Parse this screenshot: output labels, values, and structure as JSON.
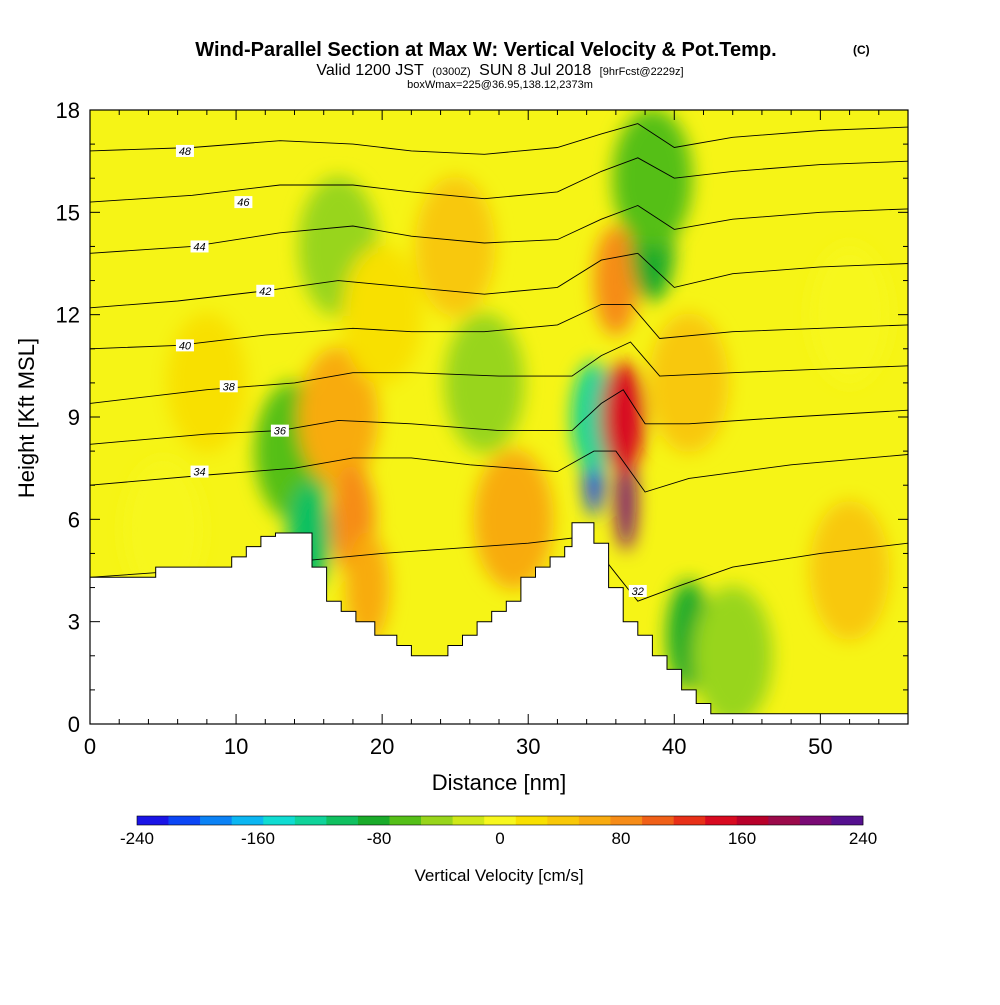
{
  "header": {
    "title": "Wind-Parallel Section at Max W: Vertical Velocity & Pot.Temp.",
    "title_mark": "(C)",
    "valid_prefix": "Valid 1200 JST",
    "valid_utc": "(0300Z)",
    "valid_date": "SUN 8 Jul 2018",
    "forecast": "[9hrFcst@2229z]",
    "boxinfo": "boxWmax=225@36.95,138.12,2373m"
  },
  "chart_data": {
    "type": "heatmap",
    "xlabel": "Distance [nm]",
    "ylabel": "Height [Kft MSL]",
    "xlim": [
      0,
      56
    ],
    "ylim": [
      0,
      18
    ],
    "xticks": [
      0,
      10,
      20,
      30,
      40,
      50
    ],
    "yticks": [
      0,
      3,
      6,
      9,
      12,
      15,
      18
    ],
    "terrain_kft": [
      [
        0,
        4.3
      ],
      [
        4.5,
        4.3
      ],
      [
        4.5,
        4.6
      ],
      [
        9.7,
        4.6
      ],
      [
        9.7,
        4.9
      ],
      [
        10.7,
        4.9
      ],
      [
        10.7,
        5.2
      ],
      [
        11.7,
        5.2
      ],
      [
        11.7,
        5.5
      ],
      [
        12.7,
        5.5
      ],
      [
        12.7,
        5.6
      ],
      [
        15.2,
        5.6
      ],
      [
        15.2,
        4.6
      ],
      [
        16.2,
        4.6
      ],
      [
        16.2,
        3.6
      ],
      [
        17.2,
        3.6
      ],
      [
        17.2,
        3.3
      ],
      [
        18.2,
        3.3
      ],
      [
        18.2,
        3.0
      ],
      [
        19.5,
        3.0
      ],
      [
        19.5,
        2.6
      ],
      [
        21.0,
        2.6
      ],
      [
        21.0,
        2.3
      ],
      [
        22.0,
        2.3
      ],
      [
        22.0,
        2.0
      ],
      [
        24.5,
        2.0
      ],
      [
        24.5,
        2.3
      ],
      [
        25.5,
        2.3
      ],
      [
        25.5,
        2.6
      ],
      [
        26.5,
        2.6
      ],
      [
        26.5,
        3.0
      ],
      [
        27.5,
        3.0
      ],
      [
        27.5,
        3.3
      ],
      [
        28.5,
        3.3
      ],
      [
        28.5,
        3.6
      ],
      [
        29.5,
        3.6
      ],
      [
        29.5,
        4.3
      ],
      [
        30.5,
        4.3
      ],
      [
        30.5,
        4.6
      ],
      [
        31.5,
        4.6
      ],
      [
        31.5,
        4.9
      ],
      [
        32.5,
        4.9
      ],
      [
        32.5,
        5.2
      ],
      [
        33.0,
        5.2
      ],
      [
        33.0,
        5.9
      ],
      [
        34.5,
        5.9
      ],
      [
        34.5,
        5.3
      ],
      [
        35.5,
        5.3
      ],
      [
        35.5,
        4.0
      ],
      [
        36.5,
        4.0
      ],
      [
        36.5,
        3.0
      ],
      [
        37.5,
        3.0
      ],
      [
        37.5,
        2.6
      ],
      [
        38.5,
        2.6
      ],
      [
        38.5,
        2.0
      ],
      [
        39.5,
        2.0
      ],
      [
        39.5,
        1.6
      ],
      [
        40.5,
        1.6
      ],
      [
        40.5,
        1.0
      ],
      [
        41.5,
        1.0
      ],
      [
        41.5,
        0.6
      ],
      [
        42.5,
        0.6
      ],
      [
        42.5,
        0.3
      ],
      [
        56,
        0.3
      ]
    ],
    "isentropes": [
      {
        "label": "32",
        "points": [
          [
            0,
            4.3
          ],
          [
            10,
            4.6
          ],
          [
            20,
            5.0
          ],
          [
            30,
            5.3
          ],
          [
            34,
            5.5
          ],
          [
            36.2,
            4.3
          ],
          [
            37.5,
            3.6
          ],
          [
            40,
            4.0
          ],
          [
            44,
            4.6
          ],
          [
            50,
            5.0
          ],
          [
            56,
            5.3
          ]
        ],
        "label_at": [
          37.5,
          3.9
        ]
      },
      {
        "label": "34",
        "points": [
          [
            0,
            7.0
          ],
          [
            8,
            7.3
          ],
          [
            14,
            7.5
          ],
          [
            18,
            7.8
          ],
          [
            22,
            7.8
          ],
          [
            26,
            7.6
          ],
          [
            32,
            7.4
          ],
          [
            34.5,
            8.0
          ],
          [
            36,
            8.0
          ],
          [
            38,
            6.8
          ],
          [
            41,
            7.2
          ],
          [
            48,
            7.6
          ],
          [
            56,
            7.9
          ]
        ],
        "label_at": [
          7.5,
          7.4
        ]
      },
      {
        "label": "36",
        "points": [
          [
            0,
            8.2
          ],
          [
            8,
            8.5
          ],
          [
            13,
            8.6
          ],
          [
            17,
            8.9
          ],
          [
            22,
            8.8
          ],
          [
            28,
            8.6
          ],
          [
            33,
            8.6
          ],
          [
            35,
            9.4
          ],
          [
            36.5,
            9.8
          ],
          [
            38,
            8.8
          ],
          [
            41,
            8.8
          ],
          [
            48,
            9.0
          ],
          [
            56,
            9.2
          ]
        ],
        "label_at": [
          13,
          8.6
        ]
      },
      {
        "label": "38",
        "points": [
          [
            0,
            9.4
          ],
          [
            8,
            9.8
          ],
          [
            14,
            10.0
          ],
          [
            18,
            10.3
          ],
          [
            22,
            10.3
          ],
          [
            28,
            10.2
          ],
          [
            33,
            10.2
          ],
          [
            35,
            10.8
          ],
          [
            37,
            11.2
          ],
          [
            39,
            10.2
          ],
          [
            44,
            10.3
          ],
          [
            50,
            10.4
          ],
          [
            56,
            10.5
          ]
        ],
        "label_at": [
          9.5,
          9.9
        ]
      },
      {
        "label": "40",
        "points": [
          [
            0,
            11.0
          ],
          [
            6,
            11.1
          ],
          [
            12,
            11.4
          ],
          [
            18,
            11.6
          ],
          [
            22,
            11.5
          ],
          [
            27,
            11.5
          ],
          [
            32,
            11.7
          ],
          [
            35,
            12.3
          ],
          [
            37,
            12.3
          ],
          [
            39,
            11.3
          ],
          [
            44,
            11.5
          ],
          [
            50,
            11.6
          ],
          [
            56,
            11.7
          ]
        ],
        "label_at": [
          6.5,
          11.1
        ]
      },
      {
        "label": "42",
        "points": [
          [
            0,
            12.2
          ],
          [
            6,
            12.4
          ],
          [
            12,
            12.7
          ],
          [
            17,
            13.0
          ],
          [
            22,
            12.8
          ],
          [
            27,
            12.6
          ],
          [
            32,
            12.8
          ],
          [
            35,
            13.6
          ],
          [
            37.5,
            13.8
          ],
          [
            40,
            12.8
          ],
          [
            44,
            13.2
          ],
          [
            50,
            13.4
          ],
          [
            56,
            13.5
          ]
        ],
        "label_at": [
          12,
          12.7
        ]
      },
      {
        "label": "44",
        "points": [
          [
            0,
            13.8
          ],
          [
            7,
            14.0
          ],
          [
            13,
            14.4
          ],
          [
            18,
            14.6
          ],
          [
            22,
            14.3
          ],
          [
            27,
            14.1
          ],
          [
            32,
            14.2
          ],
          [
            35,
            14.8
          ],
          [
            37.5,
            15.2
          ],
          [
            40,
            14.5
          ],
          [
            44,
            14.8
          ],
          [
            50,
            15.0
          ],
          [
            56,
            15.1
          ]
        ],
        "label_at": [
          7.5,
          14.0
        ]
      },
      {
        "label": "46",
        "points": [
          [
            0,
            15.3
          ],
          [
            7,
            15.5
          ],
          [
            13,
            15.8
          ],
          [
            18,
            15.8
          ],
          [
            22,
            15.6
          ],
          [
            27,
            15.4
          ],
          [
            32,
            15.6
          ],
          [
            35,
            16.2
          ],
          [
            37.5,
            16.6
          ],
          [
            40,
            16.0
          ],
          [
            44,
            16.2
          ],
          [
            50,
            16.4
          ],
          [
            56,
            16.5
          ]
        ],
        "label_at": [
          10.5,
          15.3
        ]
      },
      {
        "label": "48",
        "points": [
          [
            0,
            16.8
          ],
          [
            7,
            16.9
          ],
          [
            13,
            17.1
          ],
          [
            18,
            17.0
          ],
          [
            22,
            16.8
          ],
          [
            27,
            16.7
          ],
          [
            32,
            16.9
          ],
          [
            35,
            17.3
          ],
          [
            37.5,
            17.6
          ],
          [
            40,
            16.9
          ],
          [
            44,
            17.2
          ],
          [
            50,
            17.4
          ],
          [
            56,
            17.5
          ]
        ],
        "label_at": [
          6.5,
          16.8
        ]
      }
    ],
    "vertical_velocity_cells_cms": [
      {
        "x": 5,
        "y": 5.7,
        "w": 0
      },
      {
        "x": 8,
        "y": 10,
        "w": 15
      },
      {
        "x": 14,
        "y": 8,
        "w": -60
      },
      {
        "x": 15,
        "y": 5.5,
        "w": -100
      },
      {
        "x": 17,
        "y": 9,
        "w": 60
      },
      {
        "x": 18,
        "y": 6,
        "w": 90
      },
      {
        "x": 19,
        "y": 4,
        "w": 75
      },
      {
        "x": 17,
        "y": 14,
        "w": -50
      },
      {
        "x": 20,
        "y": 12,
        "w": 30
      },
      {
        "x": 25,
        "y": 14,
        "w": 40
      },
      {
        "x": 27,
        "y": 10,
        "w": -40
      },
      {
        "x": 29,
        "y": 6,
        "w": 60
      },
      {
        "x": 34.5,
        "y": 7.5,
        "w": -220
      },
      {
        "x": 34.5,
        "y": 9,
        "w": -130
      },
      {
        "x": 36.7,
        "y": 6.5,
        "w": 225
      },
      {
        "x": 36.5,
        "y": 9,
        "w": 150
      },
      {
        "x": 36,
        "y": 13,
        "w": 80
      },
      {
        "x": 38.5,
        "y": 14,
        "w": -90
      },
      {
        "x": 38.5,
        "y": 16,
        "w": -70
      },
      {
        "x": 41,
        "y": 10,
        "w": 40
      },
      {
        "x": 41,
        "y": 2.6,
        "w": -90
      },
      {
        "x": 44,
        "y": 2,
        "w": -40
      },
      {
        "x": 52,
        "y": 4.5,
        "w": 50
      },
      {
        "x": 52,
        "y": 12,
        "w": 10
      }
    ],
    "colorbar": {
      "label": "Vertical Velocity [cm/s]",
      "tick_labels": [
        "-240",
        "-160",
        "-80",
        "0",
        "80",
        "160",
        "240"
      ],
      "colors": [
        "#1a14e6",
        "#0b46f5",
        "#0b82f5",
        "#0bb6f2",
        "#10dcd2",
        "#10d39a",
        "#10c060",
        "#1aab2a",
        "#55bf18",
        "#98d51b",
        "#cfe818",
        "#f7f71e",
        "#f8e000",
        "#f8c808",
        "#f8ab10",
        "#f68c18",
        "#f06018",
        "#e83018",
        "#d80a20",
        "#b8002a",
        "#9b0a4a",
        "#7a0a75",
        "#55108f"
      ]
    }
  }
}
